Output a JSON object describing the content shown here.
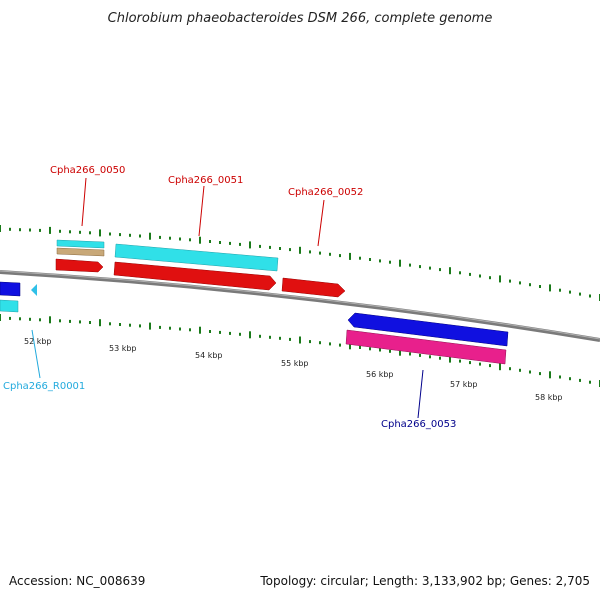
{
  "title": "Chlorobium phaeobacteroides DSM 266, complete genome",
  "footer": {
    "accession": "Accession: NC_008639",
    "summary": "Topology: circular; Length: 3,133,902 bp; Genes: 2,705"
  },
  "colors": {
    "backbone": "#7a7a7a",
    "ticks": "#1a7a1a",
    "cds_red": "#e01010",
    "cds_blue": "#1010e0",
    "cds_cyan": "#30e0e8",
    "cds_pink": "#e8208c",
    "cds_tan": "#c8a878",
    "label_red": "#cc0000",
    "label_blue": "#00008b",
    "label_cyan": "#22aadd"
  },
  "scale": {
    "labels": [
      "52 kbp",
      "53 kbp",
      "54 kbp",
      "55 kbp",
      "56 kbp",
      "57 kbp",
      "58 kbp"
    ]
  },
  "features": [
    {
      "label": "Cpha266_0050",
      "color": "label_red"
    },
    {
      "label": "Cpha266_0051",
      "color": "label_red"
    },
    {
      "label": "Cpha266_0052",
      "color": "label_red"
    },
    {
      "label": "Cpha266_0053",
      "color": "label_blue"
    },
    {
      "label": "Cpha266_R0001",
      "color": "label_cyan"
    }
  ]
}
